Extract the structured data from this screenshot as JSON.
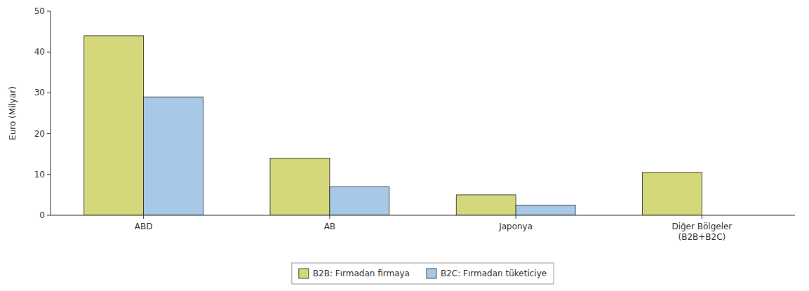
{
  "chart_data": {
    "type": "bar",
    "categories": [
      "ABD",
      "AB",
      "Japonya",
      "Diğer Bölgeler\n(B2B+B2C)"
    ],
    "series": [
      {
        "name": "B2B: Fırmadan firmaya",
        "color": "#d4d87a",
        "values": [
          44,
          14,
          5,
          10.5
        ]
      },
      {
        "name": "B2C: Fırmadan tüketiciye",
        "color": "#a8c8e8",
        "values": [
          29,
          7,
          2.5,
          0
        ]
      }
    ],
    "ylabel": "Euro (Milyar)",
    "ylim": [
      0,
      50
    ],
    "yticks": [
      0,
      10,
      20,
      30,
      40,
      50
    ],
    "grid": false,
    "legend": "bottom"
  }
}
